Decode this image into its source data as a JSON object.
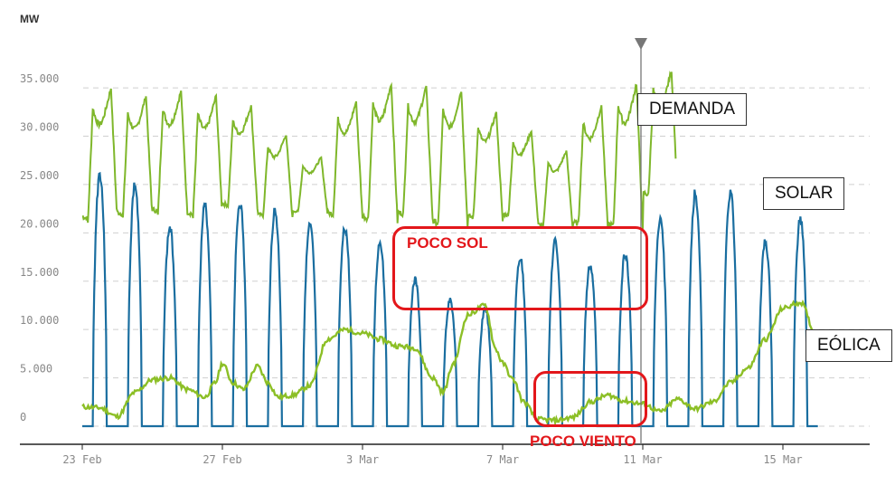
{
  "chart_data": {
    "type": "line",
    "unit_label": "MW",
    "ylim": [
      0,
      37000
    ],
    "y_ticks": [
      {
        "value": 0,
        "label": "0"
      },
      {
        "value": 5000,
        "label": "5.000"
      },
      {
        "value": 10000,
        "label": "10.000"
      },
      {
        "value": 15000,
        "label": "15.000"
      },
      {
        "value": 20000,
        "label": "20.000"
      },
      {
        "value": 25000,
        "label": "25.000"
      },
      {
        "value": 30000,
        "label": "30.000"
      },
      {
        "value": 35000,
        "label": "35.000"
      }
    ],
    "x_start": "23 Feb",
    "x_end": "17 Mar",
    "x_ticks": [
      {
        "day": 0,
        "label": "23 Feb"
      },
      {
        "day": 4,
        "label": "27 Feb"
      },
      {
        "day": 8,
        "label": "3 Mar"
      },
      {
        "day": 12,
        "label": "7 Mar"
      },
      {
        "day": 16,
        "label": "11 Mar"
      },
      {
        "day": 20,
        "label": "15 Mar"
      }
    ],
    "grid": true,
    "marker_day": 16,
    "series": [
      {
        "name": "DEMANDA",
        "color": "#7fb72b",
        "daily_min": [
          21000,
          21500,
          21800,
          21500,
          22500,
          21500,
          22000,
          21500,
          21000,
          21500,
          20500,
          21200,
          21500,
          20500,
          20500,
          20200,
          23500
        ],
        "daily_max": [
          35000,
          34200,
          34700,
          34200,
          33200,
          30200,
          27800,
          33600,
          35500,
          35200,
          34800,
          32500,
          30600,
          28500,
          33200,
          35500,
          36800
        ]
      },
      {
        "name": "SOLAR",
        "color": "#1a6ea0",
        "daily_peak": [
          26800,
          25500,
          21000,
          23300,
          23700,
          22800,
          21200,
          21000,
          19500,
          15500,
          13300,
          12500,
          17800,
          19500,
          17000,
          18300,
          21800,
          24700,
          24900,
          19500,
          22000
        ]
      },
      {
        "name": "EÓLICA",
        "color": "#8cbf26",
        "points": [
          [
            0,
            2000
          ],
          [
            0.5,
            1900
          ],
          [
            1,
            1000
          ],
          [
            1.5,
            3500
          ],
          [
            2,
            4800
          ],
          [
            2.5,
            5000
          ],
          [
            3,
            3800
          ],
          [
            3.5,
            3000
          ],
          [
            3.8,
            4500
          ],
          [
            4,
            6500
          ],
          [
            4.3,
            4500
          ],
          [
            4.6,
            3800
          ],
          [
            5,
            6200
          ],
          [
            5.3,
            4500
          ],
          [
            5.6,
            3000
          ],
          [
            6,
            3200
          ],
          [
            6.5,
            4200
          ],
          [
            7,
            9000
          ],
          [
            7.5,
            10000
          ],
          [
            8,
            9600
          ],
          [
            8.5,
            9000
          ],
          [
            9,
            8300
          ],
          [
            9.5,
            8100
          ],
          [
            10,
            5000
          ],
          [
            10.3,
            3500
          ],
          [
            10.6,
            6500
          ],
          [
            11,
            11500
          ],
          [
            11.5,
            12500
          ],
          [
            11.8,
            8000
          ],
          [
            12,
            6500
          ],
          [
            12.3,
            4800
          ],
          [
            12.6,
            2500
          ],
          [
            13,
            700
          ],
          [
            13.5,
            600
          ],
          [
            14,
            900
          ],
          [
            14.5,
            2500
          ],
          [
            15,
            3200
          ],
          [
            15.5,
            2600
          ],
          [
            16,
            2300
          ],
          [
            16.5,
            1500
          ],
          [
            17,
            2800
          ],
          [
            17.5,
            1800
          ],
          [
            18,
            2500
          ],
          [
            18.5,
            4500
          ],
          [
            19,
            6000
          ],
          [
            19.5,
            9000
          ],
          [
            20,
            12200
          ],
          [
            20.5,
            12800
          ],
          [
            21,
            9000
          ],
          [
            21.3,
            7500
          ],
          [
            21.5,
            8800
          ]
        ]
      }
    ],
    "annotations": [
      {
        "text": "POCO SOL"
      },
      {
        "text": "POCO VIENTO"
      }
    ]
  }
}
